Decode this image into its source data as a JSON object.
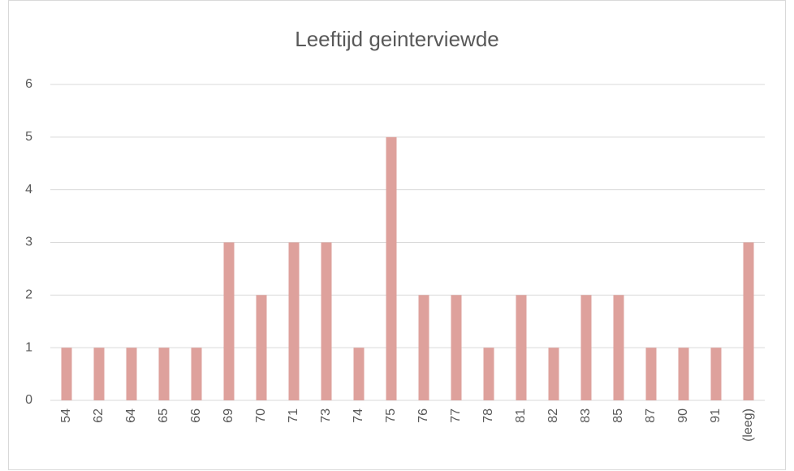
{
  "chart_data": {
    "type": "bar",
    "title": "Leeftijd geinterviewde",
    "categories": [
      "54",
      "62",
      "64",
      "65",
      "66",
      "69",
      "70",
      "71",
      "73",
      "74",
      "75",
      "76",
      "77",
      "78",
      "81",
      "82",
      "83",
      "85",
      "87",
      "90",
      "91",
      "(leeg)"
    ],
    "values": [
      1,
      1,
      1,
      1,
      1,
      3,
      2,
      3,
      3,
      1,
      5,
      2,
      2,
      1,
      2,
      1,
      2,
      2,
      1,
      1,
      1,
      3
    ],
    "color": "#dea19c",
    "ylim": [
      0,
      6
    ],
    "yticks": [
      0,
      1,
      2,
      3,
      4,
      5,
      6
    ],
    "grid": true
  }
}
